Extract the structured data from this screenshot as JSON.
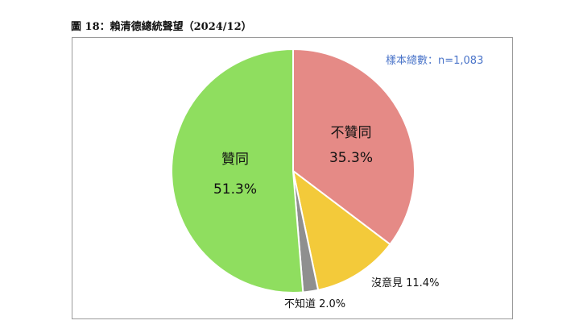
{
  "caption": "圖 18：賴清德總統聲望（2024/12）",
  "sample_size": "樣本總數：n=1,083",
  "chart_data": {
    "type": "pie",
    "start_angle_deg": 0,
    "direction": "clockwise",
    "slices": [
      {
        "label": "不贊同",
        "value": 35.3,
        "display": "35.3%",
        "color": "#e58a86"
      },
      {
        "label": "沒意見",
        "value": 11.4,
        "display": "11.4%",
        "color": "#f3ca3a"
      },
      {
        "label": "不知道",
        "value": 2.0,
        "display": "2.0%",
        "color": "#8f8f8f"
      },
      {
        "label": "贊同",
        "value": 51.3,
        "display": "51.3%",
        "color": "#8fde5f"
      }
    ]
  }
}
